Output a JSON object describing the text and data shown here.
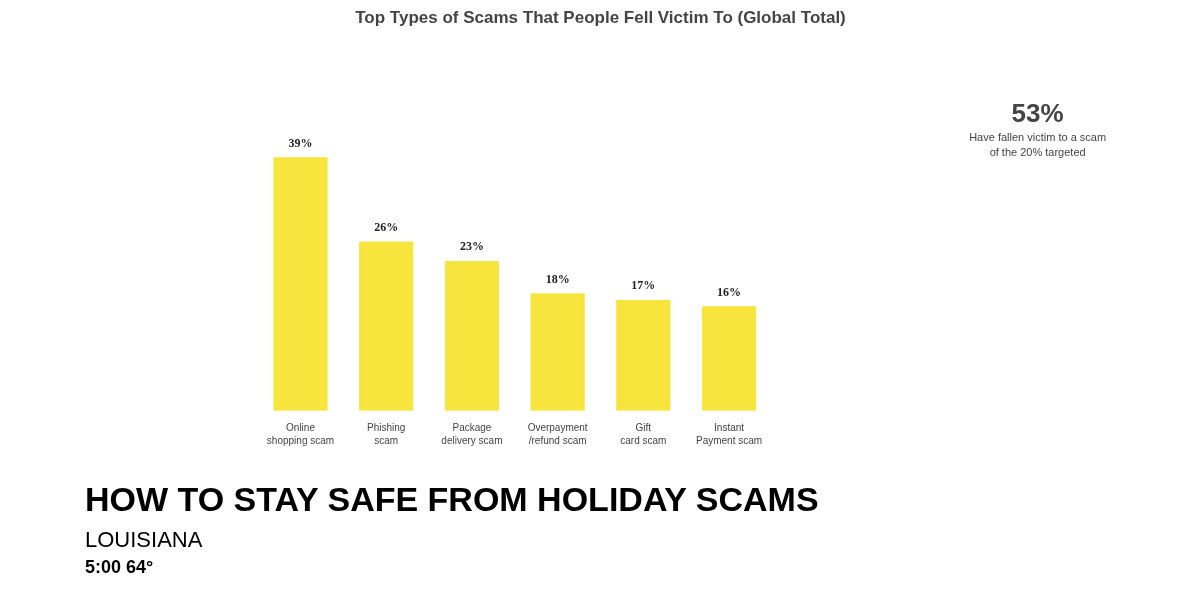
{
  "chart_data": {
    "type": "bar",
    "title": "Top Types of Scams That People Fell Victim To (Global Total)",
    "categories": [
      "Online shopping scam",
      "Phishing scam",
      "Package delivery scam",
      "Overpayment /refund scam",
      "Gift card scam",
      "Instant Payment scam"
    ],
    "values": [
      39,
      26,
      23,
      18,
      17,
      16
    ],
    "value_labels": [
      "39%",
      "26%",
      "23%",
      "18%",
      "17%",
      "16%"
    ],
    "color": "#f7e43c",
    "annotations": [
      "53%",
      "Have fallen victim to a scam of the 20% targeted",
      "HOW TO STAY SAFE FROM HOLIDAY SCAMS",
      "LOUISIANA",
      "5:00 64°"
    ]
  }
}
